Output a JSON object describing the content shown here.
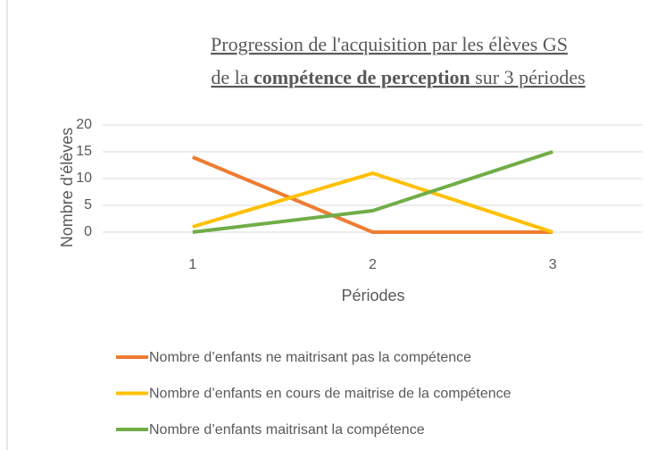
{
  "chart_data": {
    "type": "line",
    "title": [
      "Progression de l'acquisition par les élèves GS",
      "de la ",
      "compétence de perception",
      " sur 3 périodes"
    ],
    "x_label": "Périodes",
    "y_label": "Nombre d'élèves",
    "categories": [
      "1",
      "2",
      "3"
    ],
    "series": [
      {
        "name": "Nombre d’enfants ne maitrisant pas la compétence",
        "color": "#ED7D31",
        "values": [
          14,
          0,
          0
        ]
      },
      {
        "name": "Nombre d’enfants en cours de maitrise de la compétence",
        "color": "#FFC000",
        "values": [
          1,
          11,
          0
        ]
      },
      {
        "name": "Nombre d’enfants maitrisant la compétence",
        "color": "#70AD47",
        "values": [
          0,
          4,
          15
        ]
      }
    ],
    "ylim": [
      0,
      20
    ],
    "yticks": [
      0,
      5,
      10,
      15,
      20
    ],
    "grid": true,
    "legend": "bottom"
  }
}
